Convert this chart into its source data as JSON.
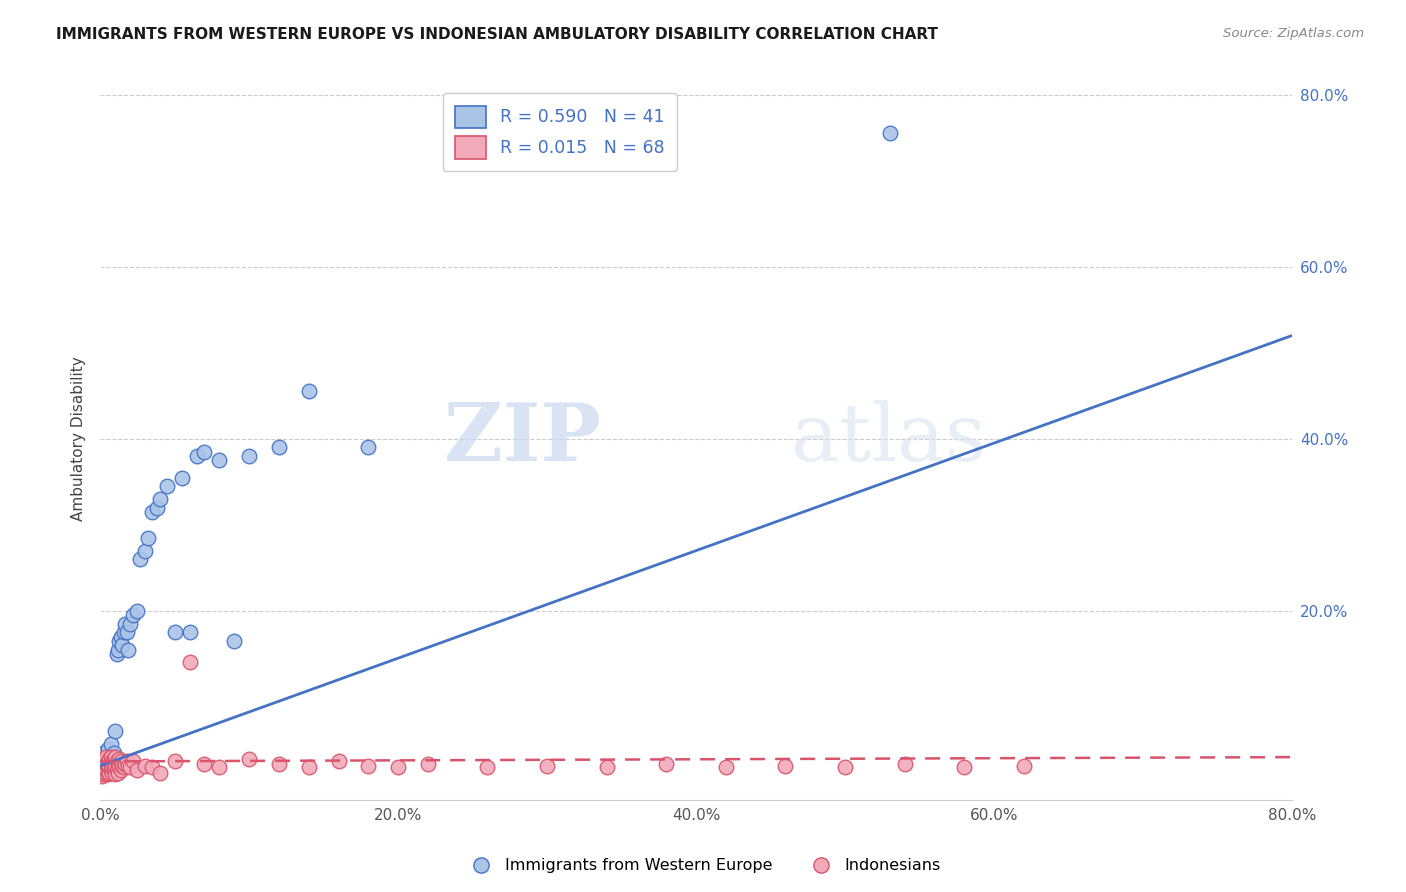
{
  "title": "IMMIGRANTS FROM WESTERN EUROPE VS INDONESIAN AMBULATORY DISABILITY CORRELATION CHART",
  "source": "Source: ZipAtlas.com",
  "xlabel": "",
  "ylabel": "Ambulatory Disability",
  "xlim": [
    0,
    0.8
  ],
  "ylim": [
    -0.02,
    0.82
  ],
  "xtick_labels": [
    "0.0%",
    "20.0%",
    "40.0%",
    "60.0%",
    "80.0%"
  ],
  "xtick_vals": [
    0.0,
    0.2,
    0.4,
    0.6,
    0.8
  ],
  "ytick_labels": [
    "20.0%",
    "40.0%",
    "60.0%",
    "80.0%"
  ],
  "ytick_vals": [
    0.2,
    0.4,
    0.6,
    0.8
  ],
  "blue_R": 0.59,
  "blue_N": 41,
  "pink_R": 0.015,
  "pink_N": 68,
  "blue_color": "#aac4e8",
  "pink_color": "#f2aabb",
  "blue_line_color": "#4472c4",
  "pink_line_color": "#d9546a",
  "legend_label_blue": "Immigrants from Western Europe",
  "legend_label_pink": "Indonesians",
  "watermark_zip": "ZIP",
  "watermark_atlas": "atlas",
  "blue_line_x": [
    0.0,
    0.8
  ],
  "blue_line_y": [
    0.02,
    0.52
  ],
  "pink_line_x": [
    0.0,
    0.8
  ],
  "pink_line_y": [
    0.025,
    0.03
  ],
  "blue_points_x": [
    0.001,
    0.002,
    0.003,
    0.004,
    0.005,
    0.006,
    0.007,
    0.008,
    0.009,
    0.01,
    0.011,
    0.012,
    0.013,
    0.014,
    0.015,
    0.016,
    0.017,
    0.018,
    0.019,
    0.02,
    0.022,
    0.025,
    0.027,
    0.03,
    0.032,
    0.035,
    0.038,
    0.04,
    0.045,
    0.05,
    0.055,
    0.06,
    0.065,
    0.07,
    0.08,
    0.09,
    0.1,
    0.12,
    0.14,
    0.18,
    0.53
  ],
  "blue_points_y": [
    0.03,
    0.035,
    0.025,
    0.022,
    0.04,
    0.028,
    0.045,
    0.03,
    0.035,
    0.06,
    0.15,
    0.155,
    0.165,
    0.17,
    0.16,
    0.175,
    0.185,
    0.175,
    0.155,
    0.185,
    0.195,
    0.2,
    0.26,
    0.27,
    0.285,
    0.315,
    0.32,
    0.33,
    0.345,
    0.175,
    0.355,
    0.175,
    0.38,
    0.385,
    0.375,
    0.165,
    0.38,
    0.39,
    0.455,
    0.39,
    0.755
  ],
  "pink_points_x": [
    0.001,
    0.001,
    0.002,
    0.002,
    0.002,
    0.003,
    0.003,
    0.003,
    0.004,
    0.004,
    0.004,
    0.005,
    0.005,
    0.005,
    0.006,
    0.006,
    0.006,
    0.007,
    0.007,
    0.007,
    0.008,
    0.008,
    0.008,
    0.009,
    0.009,
    0.01,
    0.01,
    0.01,
    0.011,
    0.011,
    0.012,
    0.012,
    0.013,
    0.013,
    0.014,
    0.014,
    0.015,
    0.016,
    0.017,
    0.018,
    0.019,
    0.02,
    0.022,
    0.025,
    0.03,
    0.035,
    0.04,
    0.05,
    0.06,
    0.07,
    0.08,
    0.1,
    0.12,
    0.14,
    0.16,
    0.18,
    0.2,
    0.22,
    0.26,
    0.3,
    0.34,
    0.38,
    0.42,
    0.46,
    0.5,
    0.54,
    0.58,
    0.62
  ],
  "pink_points_y": [
    0.008,
    0.015,
    0.01,
    0.018,
    0.025,
    0.012,
    0.02,
    0.028,
    0.015,
    0.022,
    0.03,
    0.01,
    0.018,
    0.025,
    0.012,
    0.02,
    0.028,
    0.015,
    0.022,
    0.03,
    0.012,
    0.018,
    0.025,
    0.015,
    0.028,
    0.01,
    0.02,
    0.03,
    0.015,
    0.025,
    0.012,
    0.022,
    0.018,
    0.028,
    0.015,
    0.025,
    0.02,
    0.018,
    0.022,
    0.025,
    0.02,
    0.018,
    0.025,
    0.015,
    0.02,
    0.018,
    0.012,
    0.025,
    0.14,
    0.022,
    0.018,
    0.028,
    0.022,
    0.018,
    0.025,
    0.02,
    0.018,
    0.022,
    0.018,
    0.02,
    0.018,
    0.022,
    0.018,
    0.02,
    0.018,
    0.022,
    0.018,
    0.02
  ]
}
